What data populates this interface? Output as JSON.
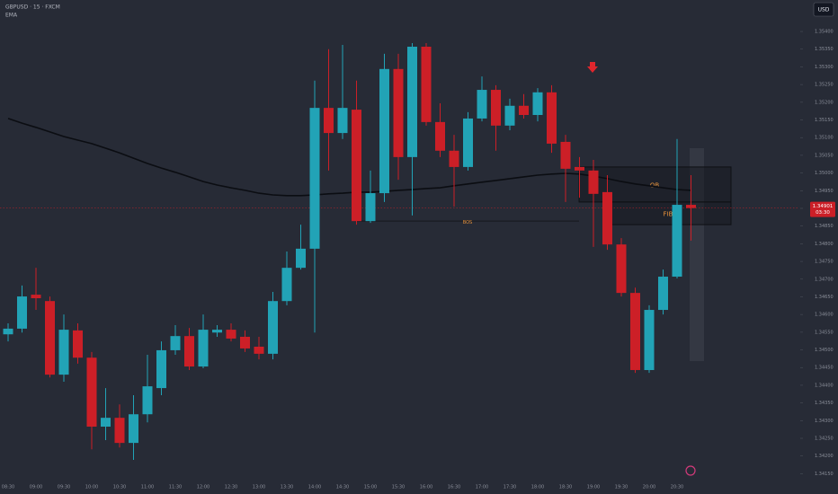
{
  "chart_data": {
    "type": "candlestick",
    "title": "GBPUSD · 15 · FXCM",
    "indicator_label": "EMA",
    "currency": "USD",
    "countdown": "03:30",
    "up_color": "#22a3b6",
    "down_color": "#cc1f27",
    "ema_color": "#0b0d12",
    "categories": [
      "08:30",
      null,
      "09:00",
      null,
      "09:30",
      null,
      "10:00",
      null,
      "10:30",
      null,
      "11:00",
      null,
      "11:30",
      null,
      "12:00",
      null,
      "12:30",
      null,
      "13:00",
      null,
      "13:30",
      null,
      "14:00",
      null,
      "14:30",
      null,
      "15:00",
      null,
      "15:30",
      null,
      "16:00",
      null,
      "16:30",
      null,
      "17:00",
      null,
      "17:30",
      null,
      "18:00",
      null,
      "18:30",
      null,
      "19:00",
      null,
      "19:30",
      null,
      "20:00",
      null,
      "20:30",
      null
    ],
    "open": [
      1.34544,
      1.3456,
      1.34656,
      1.34638,
      1.3443,
      1.34555,
      1.34478,
      1.34283,
      1.34308,
      1.34237,
      1.34318,
      1.34392,
      1.34499,
      1.34539,
      1.34453,
      1.34549,
      1.34557,
      1.34537,
      1.34509,
      1.34489,
      1.34638,
      1.34732,
      1.34786,
      1.35184,
      1.35113,
      1.35179,
      1.34864,
      1.34943,
      1.35294,
      1.35045,
      1.35357,
      1.35144,
      1.35063,
      1.35017,
      1.35154,
      1.35235,
      1.35134,
      1.3519,
      1.35164,
      1.35228,
      1.35088,
      1.35017,
      1.35007,
      1.34946,
      1.34798,
      1.34661,
      1.34443,
      1.34613,
      1.34707,
      1.3491
    ],
    "high": [
      1.34575,
      1.34682,
      1.34732,
      1.34651,
      1.346,
      1.34575,
      1.34494,
      1.34392,
      1.34346,
      1.34372,
      1.34486,
      1.34524,
      1.3457,
      1.34562,
      1.346,
      1.3457,
      1.34575,
      1.34555,
      1.34537,
      1.34664,
      1.34778,
      1.34854,
      1.35261,
      1.3535,
      1.35362,
      1.35261,
      1.35007,
      1.35337,
      1.35337,
      1.35367,
      1.35367,
      1.35197,
      1.35108,
      1.35172,
      1.35273,
      1.35248,
      1.3521,
      1.35223,
      1.3524,
      1.35248,
      1.35108,
      1.35045,
      1.35037,
      1.34994,
      1.34816,
      1.34676,
      1.34626,
      1.34727,
      1.35096,
      1.34994
    ],
    "low": [
      1.34524,
      1.34549,
      1.34613,
      1.34422,
      1.3441,
      1.34461,
      1.34219,
      1.34245,
      1.34224,
      1.34189,
      1.34295,
      1.34372,
      1.34486,
      1.34443,
      1.34448,
      1.34537,
      1.34524,
      1.34494,
      1.34473,
      1.34473,
      1.34626,
      1.34727,
      1.34549,
      1.35007,
      1.35096,
      1.34854,
      1.34859,
      1.34918,
      1.34981,
      1.3488,
      1.35134,
      1.35045,
      1.34905,
      1.35007,
      1.35146,
      1.35063,
      1.35121,
      1.35154,
      1.35146,
      1.35057,
      1.34918,
      1.3493,
      1.34791,
      1.34783,
      1.34651,
      1.34435,
      1.34435,
      1.346,
      1.34702,
      1.34809
    ],
    "close": [
      1.3456,
      1.34651,
      1.34646,
      1.3443,
      1.34557,
      1.34478,
      1.34283,
      1.34308,
      1.34237,
      1.34318,
      1.34397,
      1.34499,
      1.34539,
      1.34453,
      1.34557,
      1.34557,
      1.34532,
      1.34504,
      1.34489,
      1.34638,
      1.34732,
      1.34786,
      1.35184,
      1.35113,
      1.35184,
      1.34864,
      1.34943,
      1.35294,
      1.35045,
      1.35357,
      1.35144,
      1.35063,
      1.35017,
      1.35154,
      1.35235,
      1.35134,
      1.3519,
      1.35164,
      1.35228,
      1.35083,
      1.35012,
      1.35007,
      1.34941,
      1.34798,
      1.34661,
      1.34443,
      1.34613,
      1.34707,
      1.3491,
      1.34901
    ],
    "ema": [
      1.35154,
      1.35141,
      1.35129,
      1.35116,
      1.35103,
      1.35093,
      1.35083,
      1.3507,
      1.35057,
      1.35042,
      1.35027,
      1.35014,
      1.35002,
      1.34989,
      1.34976,
      1.34966,
      1.34958,
      1.34951,
      1.34943,
      1.34938,
      1.34936,
      1.34936,
      1.34938,
      1.34941,
      1.34943,
      1.34946,
      1.34946,
      1.34948,
      1.34951,
      1.34953,
      1.34956,
      1.34958,
      1.34964,
      1.34969,
      1.34974,
      1.34979,
      1.34984,
      1.34989,
      1.34994,
      1.34997,
      1.34999,
      1.34997,
      1.34991,
      1.34984,
      1.34976,
      1.34969,
      1.34964,
      1.34958,
      1.34953,
      1.34951
    ],
    "zones": [
      {
        "label": "OB",
        "top": 1.35017,
        "bottom": 1.34918,
        "color": "#e8923a"
      },
      {
        "label": "FIB",
        "top": 1.34918,
        "bottom": 1.34854,
        "color": "#e8923a"
      }
    ],
    "bos": {
      "label": "BOS",
      "value": 1.34864,
      "color": "#e8923a"
    },
    "ylim": [
      1.34118,
      1.35489
    ],
    "yticks": [
      {
        "value": 1.3415,
        "label": "1.34150"
      },
      {
        "value": 1.342,
        "label": "1.34200"
      },
      {
        "value": 1.3425,
        "label": "1.34250"
      },
      {
        "value": 1.343,
        "label": "1.34300"
      },
      {
        "value": 1.3435,
        "label": "1.34350"
      },
      {
        "value": 1.344,
        "label": "1.34400"
      },
      {
        "value": 1.3445,
        "label": "1.34450"
      },
      {
        "value": 1.345,
        "label": "1.34500"
      },
      {
        "value": 1.3455,
        "label": "1.34550"
      },
      {
        "value": 1.346,
        "label": "1.34600"
      },
      {
        "value": 1.3465,
        "label": "1.34650"
      },
      {
        "value": 1.347,
        "label": "1.34700"
      },
      {
        "value": 1.3475,
        "label": "1.34750"
      },
      {
        "value": 1.348,
        "label": "1.34800"
      },
      {
        "value": 1.3485,
        "label": "1.34850"
      },
      {
        "value": 1.349,
        "label": "1.34900"
      },
      {
        "value": 1.3495,
        "label": "1.34950"
      },
      {
        "value": 1.35,
        "label": "1.35000"
      },
      {
        "value": 1.3505,
        "label": "1.35050"
      },
      {
        "value": 1.351,
        "label": "1.35100"
      },
      {
        "value": 1.3515,
        "label": "1.35150"
      },
      {
        "value": 1.352,
        "label": "1.35200"
      },
      {
        "value": 1.3525,
        "label": "1.35250"
      },
      {
        "value": 1.353,
        "label": "1.35300"
      },
      {
        "value": 1.3535,
        "label": "1.35350"
      },
      {
        "value": 1.354,
        "label": "1.35400"
      }
    ],
    "grid": false
  }
}
